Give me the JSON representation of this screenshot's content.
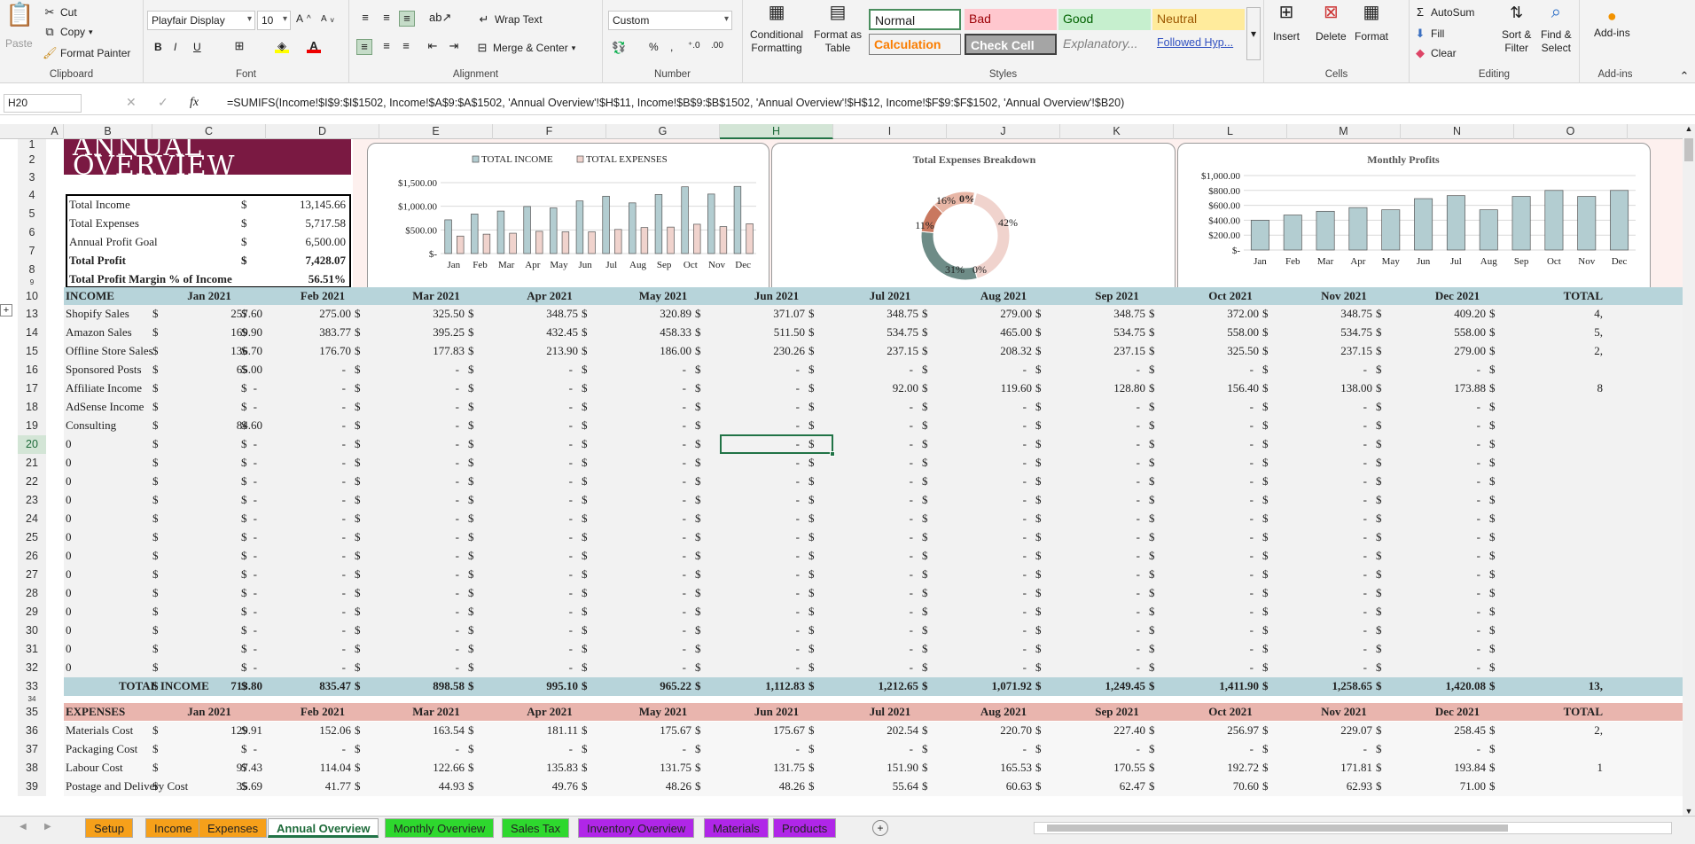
{
  "ribbon": {
    "clipboard": {
      "paste": "Paste",
      "cut": "Cut",
      "copy": "Copy",
      "format_painter": "Format Painter",
      "label": "Clipboard"
    },
    "font": {
      "family": "Playfair Display",
      "size": "10",
      "label": "Font"
    },
    "alignment": {
      "wrap": "Wrap Text",
      "merge": "Merge & Center",
      "label": "Alignment"
    },
    "number": {
      "format": "Custom",
      "label": "Number"
    },
    "styles": {
      "cond1": "Conditional",
      "cond2": "Formatting",
      "fmt1": "Format as",
      "fmt2": "Table",
      "normal": "Normal",
      "bad": "Bad",
      "good": "Good",
      "neutral": "Neutral",
      "calc": "Calculation",
      "check": "Check Cell",
      "expl": "Explanatory...",
      "follow": "Followed Hyp...",
      "label": "Styles"
    },
    "cells": {
      "insert": "Insert",
      "delete": "Delete",
      "format": "Format",
      "label": "Cells"
    },
    "editing": {
      "autosum": "AutoSum",
      "fill": "Fill",
      "clear": "Clear",
      "sort1": "Sort &",
      "sort2": "Filter",
      "find1": "Find &",
      "find2": "Select",
      "label": "Editing"
    },
    "addins": {
      "btn": "Add-ins",
      "label": "Add-ins"
    }
  },
  "formula": {
    "namebox": "H20",
    "fx": "fx",
    "content": "=SUMIFS(Income!$I$9:$I$1502, Income!$A$9:$A$1502, 'Annual Overview'!$H$11, Income!$B$9:$B$1502, 'Annual Overview'!$H$12, Income!$F$9:$F$1502, 'Annual Overview'!$B20)"
  },
  "columns": [
    "A",
    "B",
    "C",
    "D",
    "E",
    "F",
    "G",
    "H",
    "I",
    "J",
    "K",
    "L",
    "M",
    "N",
    "O"
  ],
  "title1": "ANNUAL",
  "title2": "OVERVIEW",
  "summary": [
    {
      "label": "Total Income",
      "cur": "$",
      "value": "13,145.66"
    },
    {
      "label": "Total Expenses",
      "cur": "$",
      "value": "5,717.58"
    },
    {
      "label": "Annual Profit Goal",
      "cur": "$",
      "value": "6,500.00"
    },
    {
      "label": "Total Profit",
      "cur": "$",
      "value": "7,428.07"
    },
    {
      "label": "Total Profit Margin % of Income",
      "cur": "",
      "value": "56.51%"
    }
  ],
  "months": [
    "Jan 2021",
    "Feb 2021",
    "Mar 2021",
    "Apr 2021",
    "May 2021",
    "Jun 2021",
    "Jul 2021",
    "Aug 2021",
    "Sep 2021",
    "Oct 2021",
    "Nov 2021",
    "Dec 2021"
  ],
  "income_header": "INCOME",
  "total_header": "TOTAL",
  "income_rows": [
    {
      "label": "Shopify Sales",
      "vals": [
        "257.60",
        "275.00",
        "325.50",
        "348.75",
        "320.89",
        "371.07",
        "348.75",
        "279.00",
        "348.75",
        "372.00",
        "348.75",
        "409.20"
      ],
      "total": "4,"
    },
    {
      "label": "Amazon Sales",
      "vals": [
        "169.90",
        "383.77",
        "395.25",
        "432.45",
        "458.33",
        "511.50",
        "534.75",
        "465.00",
        "534.75",
        "558.00",
        "534.75",
        "558.00"
      ],
      "total": "5,"
    },
    {
      "label": "Offline Store Sales",
      "vals": [
        "136.70",
        "176.70",
        "177.83",
        "213.90",
        "186.00",
        "230.26",
        "237.15",
        "208.32",
        "237.15",
        "325.50",
        "237.15",
        "279.00"
      ],
      "total": "2,"
    },
    {
      "label": "Sponsored Posts",
      "vals": [
        "65.00",
        "-",
        "-",
        "-",
        "-",
        "-",
        "-",
        "-",
        "-",
        "-",
        "-",
        "-"
      ],
      "total": ""
    },
    {
      "label": "Affiliate Income",
      "vals": [
        "-",
        "-",
        "-",
        "-",
        "-",
        "-",
        "92.00",
        "119.60",
        "128.80",
        "156.40",
        "138.00",
        "173.88"
      ],
      "total": "8"
    },
    {
      "label": "AdSense Income",
      "vals": [
        "-",
        "-",
        "-",
        "-",
        "-",
        "-",
        "-",
        "-",
        "-",
        "-",
        "-",
        "-"
      ],
      "total": ""
    },
    {
      "label": "Consulting",
      "vals": [
        "84.60",
        "-",
        "-",
        "-",
        "-",
        "-",
        "-",
        "-",
        "-",
        "-",
        "-",
        "-"
      ],
      "total": ""
    }
  ],
  "zero_label": "0",
  "empty_rows_count": 13,
  "total_income_label": "TOTAL INCOME",
  "total_income": [
    "713.80",
    "835.47",
    "898.58",
    "995.10",
    "965.22",
    "1,112.83",
    "1,212.65",
    "1,071.92",
    "1,249.45",
    "1,411.90",
    "1,258.65",
    "1,420.08"
  ],
  "total_income_total": "13,",
  "expenses_header": "EXPENSES",
  "expense_rows": [
    {
      "label": "Materials Cost",
      "vals": [
        "129.91",
        "152.06",
        "163.54",
        "181.11",
        "175.67",
        "175.67",
        "202.54",
        "220.70",
        "227.40",
        "256.97",
        "229.07",
        "258.45"
      ],
      "total": "2,"
    },
    {
      "label": "Packaging Cost",
      "vals": [
        "-",
        "-",
        "-",
        "-",
        "-",
        "-",
        "-",
        "-",
        "-",
        "-",
        "-",
        "-"
      ],
      "total": ""
    },
    {
      "label": "Labour Cost",
      "vals": [
        "97.43",
        "114.04",
        "122.66",
        "135.83",
        "131.75",
        "131.75",
        "151.90",
        "165.53",
        "170.55",
        "192.72",
        "171.81",
        "193.84"
      ],
      "total": "1"
    },
    {
      "label": "Postage and Delivery Cost",
      "vals": [
        "35.69",
        "41.77",
        "44.93",
        "49.76",
        "48.26",
        "48.26",
        "55.64",
        "60.63",
        "62.47",
        "70.60",
        "62.93",
        "71.00"
      ],
      "total": ""
    }
  ],
  "row_numbers": [
    "1",
    "2",
    "3",
    "4",
    "5",
    "6",
    "7",
    "8",
    "9",
    "10",
    "11",
    "12",
    "13",
    "14",
    "15",
    "16",
    "17",
    "18",
    "19",
    "20",
    "21",
    "22",
    "23",
    "24",
    "25",
    "26",
    "27",
    "28",
    "29",
    "30",
    "31",
    "32",
    "33",
    "34",
    "35",
    "36",
    "37",
    "38",
    "39"
  ],
  "chart_data": [
    {
      "type": "bar",
      "title": "",
      "categories": [
        "Jan",
        "Feb",
        "Mar",
        "Apr",
        "May",
        "Jun",
        "Jul",
        "Aug",
        "Sep",
        "Oct",
        "Nov",
        "Dec"
      ],
      "series": [
        {
          "name": "TOTAL INCOME",
          "values": [
            713.8,
            835.47,
            898.58,
            995.1,
            965.22,
            1112.83,
            1212.65,
            1071.92,
            1249.45,
            1411.9,
            1258.65,
            1420.08
          ]
        },
        {
          "name": "TOTAL EXPENSES",
          "values": [
            370,
            410,
            430,
            470,
            460,
            460,
            510,
            550,
            560,
            620,
            570,
            630
          ]
        }
      ],
      "yticks": [
        "$1,500.00",
        "$1,000.00",
        "$500.00",
        "$-"
      ],
      "ylim": [
        0,
        1500
      ],
      "legend": "top",
      "colors": [
        "#b3cdd1",
        "#f0d3cd"
      ]
    },
    {
      "type": "pie",
      "title": "Total Expenses Breakdown",
      "labels": [
        "42%",
        "31%",
        "11%",
        "16%",
        "0%",
        "0%"
      ],
      "values": [
        42,
        31,
        11,
        16,
        0.3,
        0.3
      ],
      "colors": [
        "#f0d3cd",
        "#6e8c87",
        "#c9785f",
        "#e8b6a6",
        "#444",
        "#999"
      ]
    },
    {
      "type": "bar",
      "title": "Monthly Profits",
      "categories": [
        "Jan",
        "Feb",
        "Mar",
        "Apr",
        "May",
        "Jun",
        "Jul",
        "Aug",
        "Sep",
        "Oct",
        "Nov",
        "Dec"
      ],
      "values": [
        400,
        470,
        520,
        570,
        540,
        690,
        730,
        540,
        720,
        800,
        720,
        800
      ],
      "yticks": [
        "$1,000.00",
        "$800.00",
        "$600.00",
        "$400.00",
        "$200.00",
        "$-"
      ],
      "ylim": [
        0,
        1000
      ],
      "colors": [
        "#b3cdd1"
      ]
    }
  ],
  "tabs": [
    {
      "label": "Setup",
      "color": "#f6a01a"
    },
    {
      "label": "Income",
      "color": "#f6a01a"
    },
    {
      "label": "Expenses",
      "color": "#f6a01a"
    },
    {
      "label": "Annual Overview",
      "color": "#ffffff",
      "active": true
    },
    {
      "label": "Monthly Overview",
      "color": "#2ed82e"
    },
    {
      "label": "Sales Tax",
      "color": "#2ed82e"
    },
    {
      "label": "Inventory Overview",
      "color": "#b026e8"
    },
    {
      "label": "Materials",
      "color": "#b026e8"
    },
    {
      "label": "Products",
      "color": "#b026e8"
    }
  ]
}
